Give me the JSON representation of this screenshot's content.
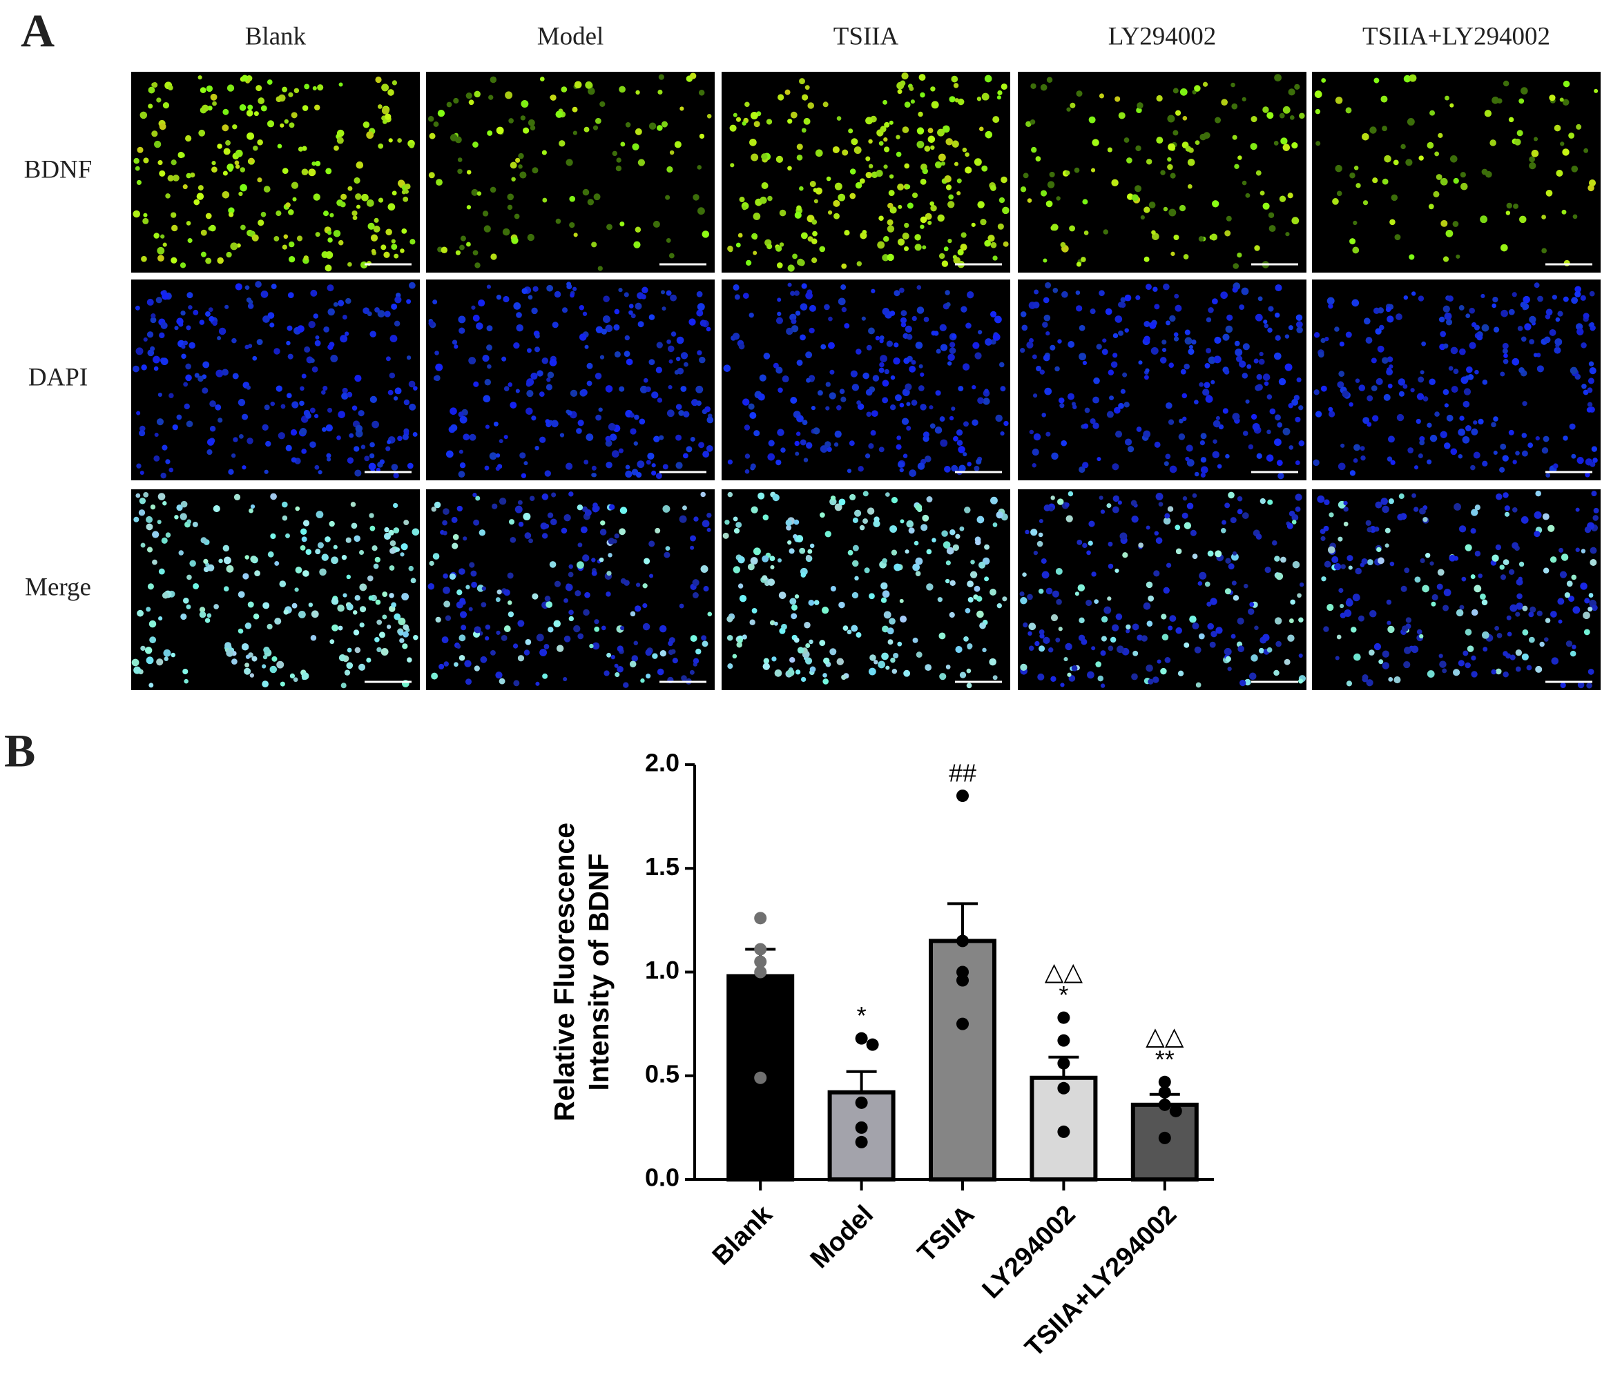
{
  "panel_a": {
    "label": "A",
    "columns": [
      "Blank",
      "Model",
      "TSIIA",
      "LY294002",
      "TSIIA+LY294002"
    ],
    "rows": [
      "BDNF",
      "DAPI",
      "Merge"
    ]
  },
  "panel_b_label": "B",
  "chart_data": {
    "type": "bar",
    "y_label": [
      "Relative Fluorescence",
      "Intensity of BDNF"
    ],
    "categories": [
      "Blank",
      "Model",
      "TSIIA",
      "LY294002",
      "TSIIA+LY294002"
    ],
    "values": [
      0.98,
      0.42,
      1.15,
      0.49,
      0.36
    ],
    "errors": [
      0.13,
      0.1,
      0.18,
      0.1,
      0.05
    ],
    "points": [
      [
        1.26,
        1.11,
        1.05,
        1.0,
        0.49
      ],
      [
        0.68,
        0.65,
        0.37,
        0.25,
        0.18
      ],
      [
        1.85,
        1.15,
        1.0,
        0.96,
        0.75
      ],
      [
        0.78,
        0.67,
        0.56,
        0.44,
        0.23
      ],
      [
        0.47,
        0.42,
        0.36,
        0.33,
        0.2
      ]
    ],
    "colors": [
      "#000000",
      "#a3a3ab",
      "#858585",
      "#d9d9d9",
      "#555555"
    ],
    "point_colors": [
      "#707070",
      "#000000",
      "#000000",
      "#000000",
      "#000000"
    ],
    "annotations": [
      {
        "category": "Model",
        "lines": [
          "*"
        ]
      },
      {
        "category": "TSIIA",
        "lines": [
          "##"
        ]
      },
      {
        "category": "LY294002",
        "lines": [
          "△△",
          "*"
        ]
      },
      {
        "category": "TSIIA+LY294002",
        "lines": [
          "△△",
          "**"
        ]
      }
    ],
    "ylim": [
      0,
      2
    ],
    "yticks": [
      {
        "value": 0,
        "label": "0.0"
      },
      {
        "value": 0.5,
        "label": "0.5"
      },
      {
        "value": 1,
        "label": "1.0"
      },
      {
        "value": 1.5,
        "label": "1.5"
      },
      {
        "value": 2,
        "label": "2.0"
      }
    ]
  }
}
